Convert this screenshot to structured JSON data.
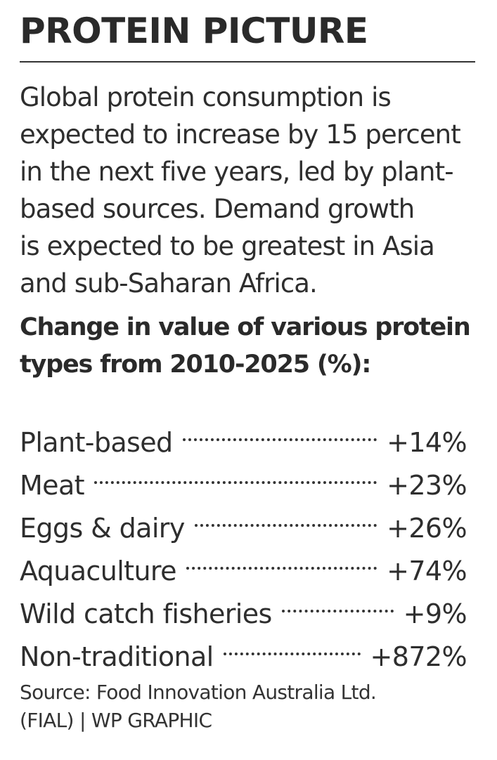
{
  "title": "PROTEIN PICTURE",
  "intro": "Global protein consumption is\nexpected to increase by 15 percent\nin the next five years, led by plant-\nbased sources. Demand growth\nis expected to be greatest in Asia\nand sub-Saharan Africa.",
  "subhead": "Change in value of various protein\ntypes from 2010-2025 (%):",
  "items": [
    {
      "label": "Plant-based",
      "value": "+14%"
    },
    {
      "label": "Meat",
      "value": "+23%"
    },
    {
      "label": "Eggs & dairy",
      "value": "+26%"
    },
    {
      "label": "Aquaculture",
      "value": "+74%"
    },
    {
      "label": "Wild catch fisheries",
      "value": "+9%"
    },
    {
      "label": "Non-traditional",
      "value": "+872%"
    }
  ],
  "source": "Source: Food Innovation Australia Ltd.\n(FIAL) | WP GRAPHIC"
}
